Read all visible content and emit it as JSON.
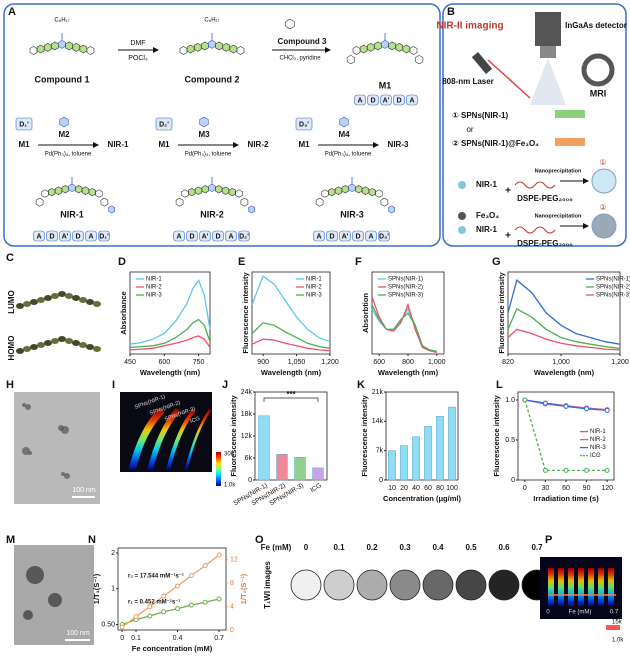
{
  "panel_letters": [
    "A",
    "B",
    "C",
    "D",
    "E",
    "F",
    "G",
    "H",
    "I",
    "J",
    "K",
    "L",
    "M",
    "N",
    "O",
    "P"
  ],
  "panel_a": {
    "compound1": "Compound 1",
    "dmf": "DMF",
    "pocl3": "POCl₃",
    "compound2": "Compound 2",
    "compound3": "Compound 3",
    "conditions": "CHCl₃, pyridine",
    "m1": "M1",
    "m1_units": [
      "A",
      "D",
      "A'",
      "D",
      "A"
    ],
    "routes": [
      {
        "donor": "D₁'",
        "start": "M1",
        "reagent": "M2",
        "catalyst": "Pd(Ph₃)₄, toluene",
        "product": "NIR-1"
      },
      {
        "donor": "D₂'",
        "start": "M1",
        "reagent": "M3",
        "catalyst": "Pd(Ph₃)₄, toluene",
        "product": "NIR-2"
      },
      {
        "donor": "D₃'",
        "start": "M1",
        "reagent": "M4",
        "catalyst": "Pd(Ph₃)₄, toluene",
        "product": "NIR-3"
      }
    ],
    "products": [
      {
        "name": "NIR-1",
        "units": [
          "A",
          "D",
          "A'",
          "D",
          "A",
          "D₁'"
        ]
      },
      {
        "name": "NIR-2",
        "units": [
          "A",
          "D",
          "A'",
          "D",
          "A",
          "D₂'"
        ]
      },
      {
        "name": "NIR-3",
        "units": [
          "A",
          "D",
          "A'",
          "D",
          "A",
          "D₃'"
        ]
      }
    ],
    "chain": "C₈H₁₇"
  },
  "panel_b": {
    "imaging": "NIR-II imaging",
    "detector": "InGaAs detector",
    "laser": "808-nm Laser",
    "mri": "MRI",
    "option1": "① SPNs(NIR-1)",
    "or": "or",
    "option2": "② SPNs(NIR-1)@Fe₃O₄",
    "prep1": {
      "dye": "NIR-1",
      "plus": "+",
      "method": "Nanoprecipitation",
      "polymer": "DSPE-PEG₂₀₀₀",
      "mark": "①"
    },
    "prep2": {
      "oxide": "Fe₃O₄",
      "dye": "NIR-1",
      "plus": "+",
      "method": "Nanoprecipitation",
      "polymer": "DSPE-PEG₂₀₀₀",
      "mark": "②"
    }
  },
  "panel_c": {
    "lumo": "LUMO",
    "homo": "HOMO"
  },
  "panel_h": {
    "scale": "100 nm"
  },
  "panel_i": {
    "labels": [
      "SPNs(NIR-1)",
      "SPNs(NIR-2)",
      "SPNs(NIR-3)",
      "ICG"
    ],
    "bar_max": "30k",
    "bar_min": "1.0k"
  },
  "panel_m": {
    "scale": "100 nm"
  },
  "panel_o": {
    "axis": "Fe (mM)",
    "concentrations": [
      "0",
      "0.1",
      "0.2",
      "0.3",
      "0.4",
      "0.5",
      "0.6",
      "0.7"
    ],
    "row_label": "T₁WI images"
  },
  "panel_p": {
    "bar_max": "15k",
    "bar_min": "1.0k",
    "start": "0",
    "axis": "Fe (mM)",
    "end": "0.7"
  },
  "chart_data": [
    {
      "type": "line",
      "xlabel": "Wavelength (nm)",
      "ylabel": "Absorbance",
      "x": [
        450,
        500,
        550,
        600,
        650,
        700,
        725,
        750,
        775,
        800
      ],
      "xlim": [
        450,
        800
      ],
      "xticks": [
        450,
        600,
        750
      ],
      "ylim": [
        0,
        1
      ],
      "legend": "upper left",
      "series": [
        {
          "name": "NIR-1",
          "color": "#5bc8e8",
          "values": [
            0.12,
            0.14,
            0.18,
            0.25,
            0.4,
            0.62,
            0.8,
            0.9,
            0.72,
            0.3
          ]
        },
        {
          "name": "NIR-2",
          "color": "#f0506e",
          "values": [
            0.05,
            0.06,
            0.07,
            0.1,
            0.13,
            0.17,
            0.2,
            0.22,
            0.18,
            0.08
          ]
        },
        {
          "name": "NIR-3",
          "color": "#4caf50",
          "values": [
            0.08,
            0.09,
            0.1,
            0.13,
            0.2,
            0.3,
            0.38,
            0.42,
            0.35,
            0.15
          ]
        }
      ]
    },
    {
      "type": "line",
      "xlabel": "Wavelength (nm)",
      "ylabel": "Fluorescence intensity",
      "x": [
        850,
        900,
        950,
        1000,
        1050,
        1100,
        1150,
        1200
      ],
      "xlim": [
        850,
        1200
      ],
      "xticks": [
        900,
        {
          "value": 1050,
          "label": "1,050"
        },
        {
          "value": 1200,
          "label": "1,200"
        }
      ],
      "ylim": [
        0,
        1
      ],
      "legend": "upper right",
      "series": [
        {
          "name": "NIR-1",
          "color": "#5bc8e8",
          "values": [
            0.6,
            0.95,
            0.85,
            0.65,
            0.45,
            0.3,
            0.2,
            0.15
          ]
        },
        {
          "name": "NIR-2",
          "color": "#f0506e",
          "values": [
            0.12,
            0.18,
            0.17,
            0.13,
            0.1,
            0.07,
            0.05,
            0.04
          ]
        },
        {
          "name": "NIR-3",
          "color": "#4caf50",
          "values": [
            0.25,
            0.38,
            0.35,
            0.27,
            0.2,
            0.13,
            0.09,
            0.07
          ]
        }
      ]
    },
    {
      "type": "line",
      "xlabel": "Wavelength (nm)",
      "ylabel": "Absorbtion",
      "x": [
        550,
        600,
        650,
        700,
        750,
        800,
        850,
        900,
        950,
        1000
      ],
      "xlim": [
        550,
        1050
      ],
      "xticks": [
        600,
        800,
        {
          "value": 1000,
          "label": "1,000"
        }
      ],
      "ylim": [
        0,
        1
      ],
      "legend": "upper left",
      "series": [
        {
          "name": "SPNs(NIR-1)",
          "color": "#5bc8e8",
          "values": [
            0.55,
            0.4,
            0.3,
            0.3,
            0.4,
            0.55,
            0.35,
            0.1,
            0.05,
            0.03
          ]
        },
        {
          "name": "SPNs(NIR-2)",
          "color": "#f0506e",
          "values": [
            0.7,
            0.45,
            0.3,
            0.28,
            0.38,
            0.6,
            0.3,
            0.08,
            0.04,
            0.02
          ]
        },
        {
          "name": "SPNs(NIR-3)",
          "color": "#4caf50",
          "values": [
            0.6,
            0.42,
            0.3,
            0.3,
            0.42,
            0.5,
            0.35,
            0.1,
            0.05,
            0.03
          ]
        }
      ]
    },
    {
      "type": "line",
      "xlabel": "Wavelength (nm)",
      "ylabel": "Fluorescence intensity",
      "x": [
        820,
        850,
        900,
        950,
        1000,
        1050,
        1100,
        1150,
        1200
      ],
      "xlim": [
        820,
        1200
      ],
      "xticks": [
        820,
        {
          "value": 1000,
          "label": "1,000"
        },
        {
          "value": 1200,
          "label": "1,200"
        }
      ],
      "ylim": [
        0,
        1
      ],
      "legend": "upper right",
      "series": [
        {
          "name": "SPNs(NIR-1)",
          "color": "#2f6fd6",
          "values": [
            0.5,
            0.9,
            0.75,
            0.5,
            0.35,
            0.25,
            0.2,
            0.15,
            0.12
          ]
        },
        {
          "name": "SPNs(NIR-2)",
          "color": "#4caf50",
          "values": [
            0.3,
            0.55,
            0.45,
            0.3,
            0.2,
            0.15,
            0.12,
            0.09,
            0.07
          ]
        },
        {
          "name": "SPNs(NIR-3)",
          "color": "#f0506e",
          "values": [
            0.2,
            0.3,
            0.25,
            0.18,
            0.13,
            0.1,
            0.08,
            0.06,
            0.05
          ]
        }
      ]
    },
    {
      "type": "bar",
      "ylabel": "Fluorescence intensity",
      "categories": [
        "SPNs(NIR-1)",
        "SPNs(NIR-2)",
        "SPNs(NIR-3)",
        "ICG"
      ],
      "values": [
        17500,
        7000,
        6200,
        3300
      ],
      "colors": [
        "#8fdcf5",
        "#f08a9a",
        "#8fd18f",
        "#c9a4e6"
      ],
      "ylim": [
        0,
        24000
      ],
      "yticks": [
        0,
        {
          "value": 6000,
          "label": "6k"
        },
        {
          "value": 12000,
          "label": "12k"
        },
        {
          "value": 18000,
          "label": "18k"
        },
        {
          "value": 24000,
          "label": "24k"
        }
      ],
      "annotation": "***"
    },
    {
      "type": "bar",
      "xlabel": "Concentration (μg/ml)",
      "ylabel": "Fluorescence intensity",
      "categories": [
        "10",
        "20",
        "40",
        "60",
        "80",
        "100"
      ],
      "values": [
        7000,
        8200,
        10300,
        12800,
        15200,
        17400
      ],
      "color": "#8fdcf5",
      "ylim": [
        0,
        21000
      ],
      "yticks": [
        0,
        {
          "value": 7000,
          "label": "7k"
        },
        {
          "value": 14000,
          "label": "14k"
        },
        {
          "value": 21000,
          "label": "21k"
        }
      ]
    },
    {
      "type": "line",
      "xlabel": "Irradiation time (s)",
      "ylabel": "Fluorescence intensity",
      "x": [
        0,
        30,
        60,
        90,
        120
      ],
      "xlim": [
        -10,
        130
      ],
      "xticks": [
        0,
        30,
        60,
        90,
        120
      ],
      "ylim": [
        0,
        1.1
      ],
      "yticks": [
        0,
        0.5,
        {
          "value": 1,
          "label": "1.0"
        }
      ],
      "legend": "center right",
      "markers": true,
      "series": [
        {
          "name": "NIR-1",
          "color": "#f0506e",
          "values": [
            1,
            0.96,
            0.93,
            0.9,
            0.88
          ]
        },
        {
          "name": "NIR-2",
          "color": "#a070d0",
          "values": [
            1,
            0.95,
            0.92,
            0.9,
            0.87
          ]
        },
        {
          "name": "NIR-3",
          "color": "#2f6fd6",
          "values": [
            1,
            0.96,
            0.92,
            0.89,
            0.87
          ]
        },
        {
          "name": "ICG",
          "color": "#4caf50",
          "dashed": true,
          "values": [
            1,
            0.12,
            0.12,
            0.12,
            0.12
          ]
        }
      ]
    },
    {
      "type": "line",
      "xlabel": "Fe concentration (mM)",
      "ylabel": "1/T₁(S⁻¹)",
      "y2label": "1/T₂(S⁻¹)",
      "x": [
        0,
        0.1,
        0.2,
        0.3,
        0.4,
        0.5,
        0.6,
        0.7
      ],
      "xlim": [
        -0.03,
        0.75
      ],
      "xticks": [
        0,
        0.1,
        0.4,
        0.7
      ],
      "ylim": [
        0.45,
        2.2
      ],
      "ylog": true,
      "yticks": [
        {
          "value": 0.5,
          "label": "0.50"
        },
        1,
        2
      ],
      "y2lim": [
        0,
        14
      ],
      "y2ticks": [
        0,
        4,
        8,
        12
      ],
      "markers": true,
      "annotations": [
        "r₂ = 17.544 mM⁻¹s⁻¹",
        "r₁ = 0.452 mM⁻¹s⁻¹"
      ],
      "series": [
        {
          "color": "#6bb04a",
          "values": [
            0.5,
            0.55,
            0.59,
            0.64,
            0.68,
            0.73,
            0.77,
            0.82
          ]
        },
        {
          "color": "#f0a060",
          "axis": "y2",
          "values": [
            0.5,
            2.3,
            4.0,
            5.8,
            7.5,
            9.3,
            11.0,
            12.8
          ]
        }
      ]
    }
  ]
}
